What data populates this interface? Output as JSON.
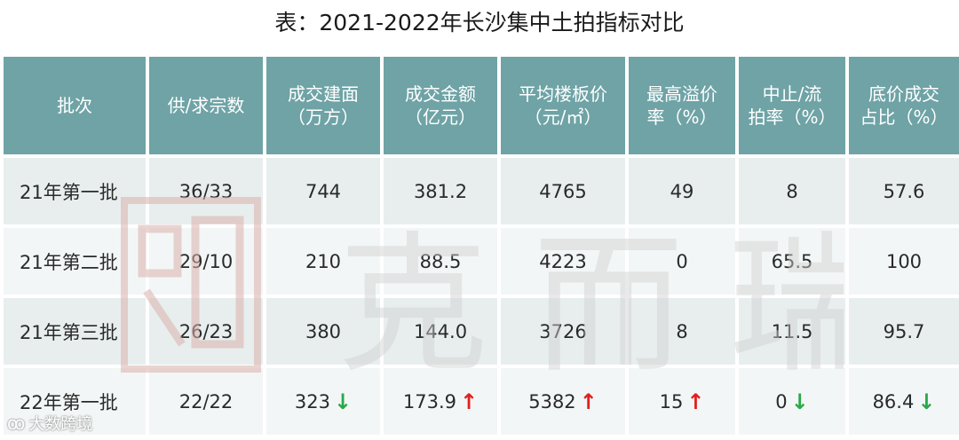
{
  "title": "表：2021-2022年长沙集中土拍指标对比",
  "chart_data": {
    "type": "table",
    "columns": [
      "批次",
      "供/求宗数",
      "成交建面（万方）",
      "成交金额（亿元）",
      "平均楼板价（元/㎡）",
      "最高溢价率（%）",
      "中止/流拍率（%）",
      "底价成交占比（%）"
    ],
    "header_lines": [
      [
        "批次"
      ],
      [
        "供/求宗数"
      ],
      [
        "成交建面",
        "（万方）"
      ],
      [
        "成交金额",
        "（亿元）"
      ],
      [
        "平均楼板价",
        "（元/㎡）"
      ],
      [
        "最高溢价",
        "率（%）"
      ],
      [
        "中止/流",
        "拍率（%）"
      ],
      [
        "底价成交",
        "占比（%）"
      ]
    ],
    "rows": [
      {
        "batch": "21年第一批",
        "cells": [
          "36/33",
          "744",
          "381.2",
          "4765",
          "49",
          "8",
          "57.6"
        ],
        "trend": [
          "",
          "",
          "",
          "",
          "",
          "",
          ""
        ]
      },
      {
        "batch": "21年第二批",
        "cells": [
          "29/10",
          "210",
          "88.5",
          "4223",
          "0",
          "65.5",
          "100"
        ],
        "trend": [
          "",
          "",
          "",
          "",
          "",
          "",
          ""
        ]
      },
      {
        "batch": "21年第三批",
        "cells": [
          "26/23",
          "380",
          "144.0",
          "3726",
          "8",
          "11.5",
          "95.7"
        ],
        "trend": [
          "",
          "",
          "",
          "",
          "",
          "",
          ""
        ]
      },
      {
        "batch": "22年第一批",
        "cells": [
          "22/22",
          "323",
          "173.9",
          "5382",
          "15",
          "0",
          "86.4"
        ],
        "trend": [
          "",
          "down",
          "up",
          "up",
          "up",
          "down",
          "down"
        ]
      }
    ],
    "colors": {
      "header": "#6fa3a6",
      "up": "#e02020",
      "down": "#2aa84a"
    },
    "arrows": {
      "up": "↑",
      "down": "↓"
    }
  },
  "watermark": {
    "brand_chars": [
      "克",
      "而",
      "瑞"
    ]
  },
  "footer": {
    "brand": "大数跨境"
  }
}
